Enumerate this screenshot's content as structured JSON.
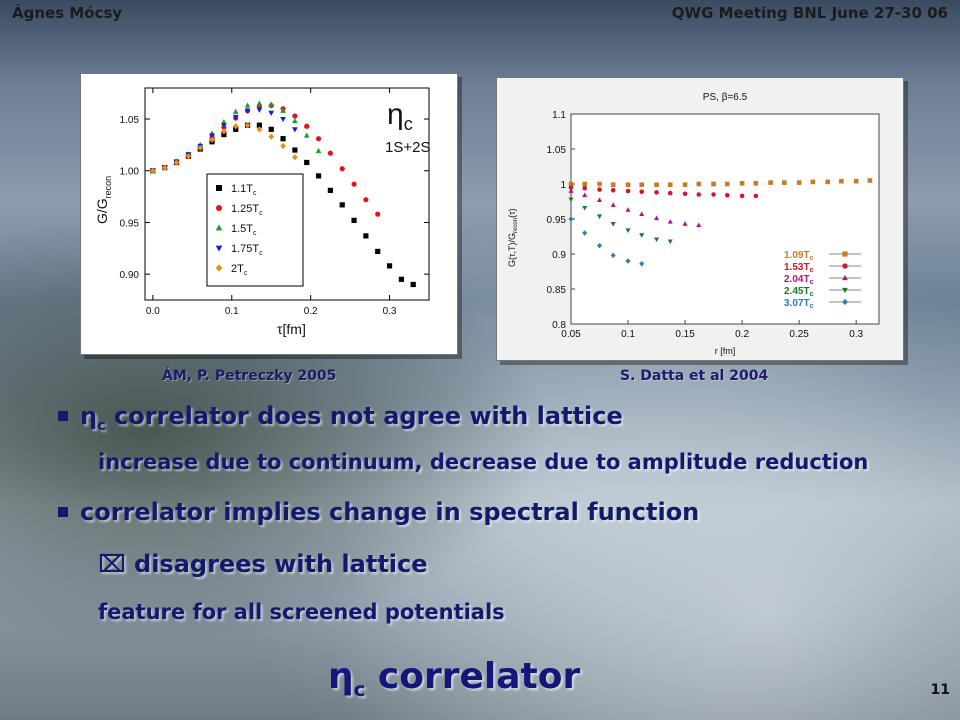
{
  "header": {
    "author": "Ágnes Mócsy",
    "meeting": "QWG Meeting BNL June 27-30 06"
  },
  "left_caption": "ÁM, P. Petreczky 2005",
  "right_caption": "S. Datta et al 2004",
  "bullets": {
    "b1_sym": "η",
    "b1_sub": "c",
    "b1_rest": " correlator does not agree with lattice",
    "b1_sub_line": "increase due to continuum, decrease due to amplitude reduction",
    "b2": "correlator implies change in spectral function",
    "b2_sub1": "⌧ disagrees with lattice",
    "b2_sub2": "feature for all screened potentials"
  },
  "slide_title_sym": "η",
  "slide_title_sub": "c",
  "slide_title_rest": " correlator",
  "page_number": "11",
  "chart_data": [
    {
      "type": "scatter",
      "title": "",
      "annotation_main": "η",
      "annotation_sub": "c",
      "annotation_line2": "1S+2S",
      "xlabel_sym": "τ",
      "xlabel": "[fm]",
      "ylabel_main": "G/G",
      "ylabel_sub": "recon",
      "xlim": [
        -0.01,
        0.35
      ],
      "ylim": [
        0.875,
        1.08
      ],
      "xticks": [
        "0.0",
        "0.1",
        "0.2",
        "0.3"
      ],
      "yticks": [
        "0.90",
        "0.95",
        "1.00",
        "1.05"
      ],
      "legend_position": "center-left",
      "series": [
        {
          "name": "1.1T",
          "sub": "c",
          "marker": "square",
          "color": "#000000",
          "x": [
            0.0,
            0.015,
            0.03,
            0.045,
            0.06,
            0.075,
            0.09,
            0.105,
            0.12,
            0.135,
            0.15,
            0.165,
            0.18,
            0.195,
            0.21,
            0.225,
            0.24,
            0.255,
            0.27,
            0.285,
            0.3,
            0.315,
            0.33
          ],
          "y": [
            1.0,
            1.003,
            1.008,
            1.014,
            1.021,
            1.028,
            1.035,
            1.04,
            1.044,
            1.044,
            1.04,
            1.031,
            1.02,
            1.008,
            0.995,
            0.981,
            0.967,
            0.952,
            0.937,
            0.922,
            0.908,
            0.895,
            0.89
          ]
        },
        {
          "name": "1.25T",
          "sub": "c",
          "marker": "circle",
          "color": "#e8101a",
          "x": [
            0.0,
            0.015,
            0.03,
            0.045,
            0.06,
            0.075,
            0.09,
            0.105,
            0.12,
            0.135,
            0.15,
            0.165,
            0.18,
            0.195,
            0.21,
            0.225,
            0.24,
            0.255,
            0.27,
            0.285
          ],
          "y": [
            1.0,
            1.003,
            1.008,
            1.015,
            1.023,
            1.032,
            1.042,
            1.051,
            1.058,
            1.062,
            1.063,
            1.06,
            1.053,
            1.043,
            1.031,
            1.017,
            1.002,
            0.987,
            0.972,
            0.958
          ]
        },
        {
          "name": "1.5T",
          "sub": "c",
          "marker": "triangle-up",
          "color": "#18a02a",
          "x": [
            0.0,
            0.015,
            0.03,
            0.045,
            0.06,
            0.075,
            0.09,
            0.105,
            0.12,
            0.135,
            0.15,
            0.165,
            0.18,
            0.195,
            0.21
          ],
          "y": [
            1.0,
            1.003,
            1.009,
            1.016,
            1.025,
            1.036,
            1.047,
            1.057,
            1.063,
            1.065,
            1.064,
            1.058,
            1.048,
            1.034,
            1.019
          ]
        },
        {
          "name": "1.75T",
          "sub": "c",
          "marker": "triangle-down",
          "color": "#1020e0",
          "x": [
            0.0,
            0.015,
            0.03,
            0.045,
            0.06,
            0.075,
            0.09,
            0.105,
            0.12,
            0.135,
            0.15,
            0.165,
            0.18
          ],
          "y": [
            1.0,
            1.003,
            1.009,
            1.016,
            1.024,
            1.034,
            1.044,
            1.052,
            1.058,
            1.059,
            1.056,
            1.05,
            1.04
          ]
        },
        {
          "name": "2T",
          "sub": "c",
          "marker": "diamond",
          "color": "#f08a10",
          "x": [
            0.0,
            0.015,
            0.03,
            0.045,
            0.06,
            0.075,
            0.09,
            0.105,
            0.12,
            0.135,
            0.15,
            0.165,
            0.18
          ],
          "y": [
            1.0,
            1.003,
            1.008,
            1.014,
            1.022,
            1.03,
            1.038,
            1.043,
            1.044,
            1.04,
            1.033,
            1.024,
            1.013
          ]
        }
      ]
    },
    {
      "type": "scatter",
      "title": "PS, β=6.5",
      "xlabel": "r [fm]",
      "ylabel": "G(τ,T)/G",
      "ylabel_sub": "recon",
      "ylabel_tail": "(τ)",
      "xlim": [
        0.05,
        0.32
      ],
      "ylim": [
        0.8,
        1.1
      ],
      "xticks": [
        "0.05",
        "0.1",
        "0.15",
        "0.2",
        "0.25",
        "0.3"
      ],
      "yticks": [
        "0.8",
        "0.85",
        "0.9",
        "0.95",
        "1",
        "1.05",
        "1.1"
      ],
      "legend_position": "bottom-right",
      "series": [
        {
          "name": "1.09T",
          "sub": "c",
          "marker": "square",
          "color": "#c87a28",
          "x": [
            0.05,
            0.062,
            0.075,
            0.087,
            0.1,
            0.112,
            0.125,
            0.137,
            0.15,
            0.162,
            0.175,
            0.187,
            0.2,
            0.212,
            0.225,
            0.237,
            0.25,
            0.262,
            0.275,
            0.287,
            0.3,
            0.312
          ],
          "y": [
            1.0,
            1.0,
            1.0,
            0.999,
            0.999,
            0.999,
            0.999,
            0.999,
            0.999,
            1.0,
            1.0,
            1.0,
            1.001,
            1.001,
            1.002,
            1.002,
            1.002,
            1.003,
            1.003,
            1.004,
            1.004,
            1.005
          ]
        },
        {
          "name": "1.53T",
          "sub": "c",
          "marker": "circle",
          "color": "#d0182a",
          "x": [
            0.05,
            0.062,
            0.075,
            0.087,
            0.1,
            0.112,
            0.125,
            0.137,
            0.15,
            0.162,
            0.175,
            0.187,
            0.2,
            0.212
          ],
          "y": [
            0.995,
            0.994,
            0.992,
            0.991,
            0.99,
            0.989,
            0.988,
            0.987,
            0.986,
            0.985,
            0.985,
            0.984,
            0.983,
            0.983
          ]
        },
        {
          "name": "2.04T",
          "sub": "c",
          "marker": "triangle-up",
          "color": "#b01488",
          "x": [
            0.05,
            0.062,
            0.075,
            0.087,
            0.1,
            0.112,
            0.125,
            0.137,
            0.15,
            0.162
          ],
          "y": [
            0.99,
            0.984,
            0.977,
            0.97,
            0.963,
            0.957,
            0.951,
            0.946,
            0.943,
            0.941
          ]
        },
        {
          "name": "2.45T",
          "sub": "c",
          "marker": "triangle-down",
          "color": "#1a7a24",
          "x": [
            0.05,
            0.062,
            0.075,
            0.087,
            0.1,
            0.112,
            0.125,
            0.137
          ],
          "y": [
            0.978,
            0.966,
            0.954,
            0.943,
            0.934,
            0.927,
            0.921,
            0.918
          ]
        },
        {
          "name": "3.07T",
          "sub": "c",
          "marker": "diamond",
          "color": "#2c7ac0",
          "x": [
            0.05,
            0.062,
            0.075,
            0.087,
            0.1,
            0.112
          ],
          "y": [
            0.95,
            0.93,
            0.912,
            0.898,
            0.89,
            0.886
          ]
        }
      ]
    }
  ]
}
